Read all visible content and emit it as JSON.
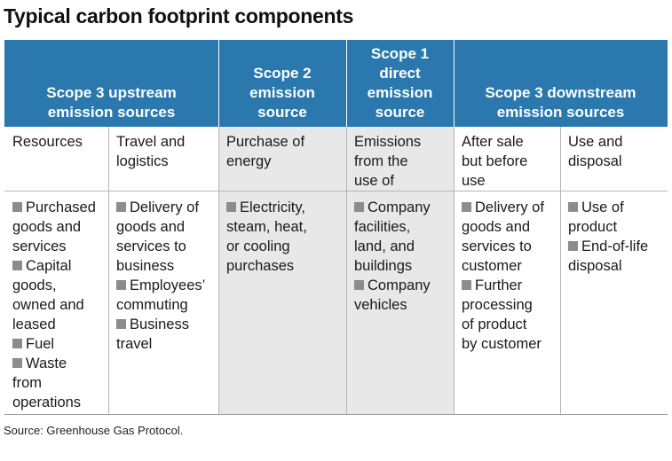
{
  "title": "Typical carbon footprint components",
  "colors": {
    "header": "#2a78ae",
    "shade": "#e8e8e8",
    "bullet": "#8c8c8c"
  },
  "headers": {
    "scope3_upstream": [
      "Scope 3 upstream",
      "emission sources"
    ],
    "scope2": [
      "Scope 2",
      "emission",
      "source"
    ],
    "scope1": [
      "Scope 1",
      "direct",
      "emission",
      "source"
    ],
    "scope3_downstream": [
      "Scope 3 downstream",
      "emission sources"
    ]
  },
  "subheaders": {
    "resources": [
      "Resources"
    ],
    "travel": [
      "Travel and",
      "logistics"
    ],
    "energy": [
      "Purchase of",
      "energy"
    ],
    "emissions_use": [
      "Emissions",
      "from the",
      "use of"
    ],
    "after_sale": [
      "After sale",
      "but before",
      "use"
    ],
    "use_disposal": [
      "Use and",
      "disposal"
    ]
  },
  "items": {
    "resources": [
      [
        "Purchased",
        "goods and",
        "services"
      ],
      [
        "Capital",
        "goods,",
        "owned and",
        "leased"
      ],
      [
        "Fuel"
      ],
      [
        "Waste",
        "from",
        "operations"
      ]
    ],
    "travel": [
      [
        "Delivery of",
        "goods and",
        "services to",
        "business"
      ],
      [
        "Employees’",
        "commuting"
      ],
      [
        "Business",
        "travel"
      ]
    ],
    "energy": [
      [
        "Electricity,",
        "steam, heat,",
        "or cooling",
        "purchases"
      ]
    ],
    "emissions_use": [
      [
        "Company",
        "facilities,",
        "land, and",
        "buildings"
      ],
      [
        "Company",
        "vehicles"
      ]
    ],
    "after_sale": [
      [
        "Delivery of",
        "goods and",
        "services to",
        "customer"
      ],
      [
        "Further",
        "processing",
        "of product",
        "by customer"
      ]
    ],
    "use_disposal": [
      [
        "Use of",
        "product"
      ],
      [
        "End-of-life",
        "disposal"
      ]
    ]
  },
  "source": "Source: Greenhouse Gas Protocol."
}
